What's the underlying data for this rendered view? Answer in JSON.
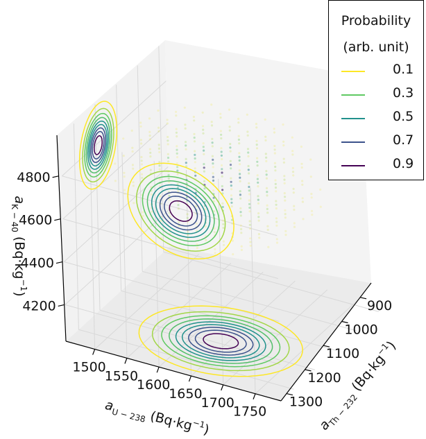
{
  "chart_data": {
    "type": "contour",
    "projection": "3d",
    "axes": {
      "x": {
        "label": "a_{U-238} (Bq·kg^{-1})",
        "label_parts": [
          "U − 238",
          " (Bq·kg",
          "−1",
          ")"
        ],
        "ticks": [
          1500,
          1550,
          1600,
          1650,
          1700,
          1750
        ],
        "range": [
          1455,
          1790
        ]
      },
      "y": {
        "label": "a_{Th-232} (Bq·kg^{-1})",
        "label_parts": [
          "Th − 232",
          " (Bq·kg",
          "−1",
          ")"
        ],
        "ticks": [
          900,
          1000,
          1100,
          1200,
          1300
        ],
        "range": [
          840,
          1330
        ]
      },
      "z": {
        "label": "a_{K-40} (Bq·kg^{-1})",
        "label_parts": [
          "K − 40",
          " (Bq·kg",
          "−1",
          ")"
        ],
        "ticks": [
          4200,
          4600,
          4400,
          4800
        ],
        "tick_order": [
          4200,
          4400,
          4600,
          4800
        ],
        "range": [
          4030,
          4990
        ]
      }
    },
    "legend": {
      "title_lines": [
        "Probability",
        "(arb. unit)"
      ],
      "placement": "top-right",
      "entries": [
        {
          "label": "0.1",
          "color": "#fde725"
        },
        {
          "label": "0.3",
          "color": "#5ec962"
        },
        {
          "label": "0.5",
          "color": "#21918c"
        },
        {
          "label": "0.7",
          "color": "#3b528b"
        },
        {
          "label": "0.9",
          "color": "#440154"
        }
      ]
    },
    "peak": {
      "U238": 1640,
      "Th232": 1010,
      "K40": 4790
    },
    "sigma": {
      "U238": 55,
      "Th232": 68,
      "K40": 110
    },
    "projections": [
      "bottom (U-238 vs Th-232)",
      "back-right (U-238 vs K-40)",
      "left (Th-232 vs K-40)"
    ],
    "grid": true
  }
}
